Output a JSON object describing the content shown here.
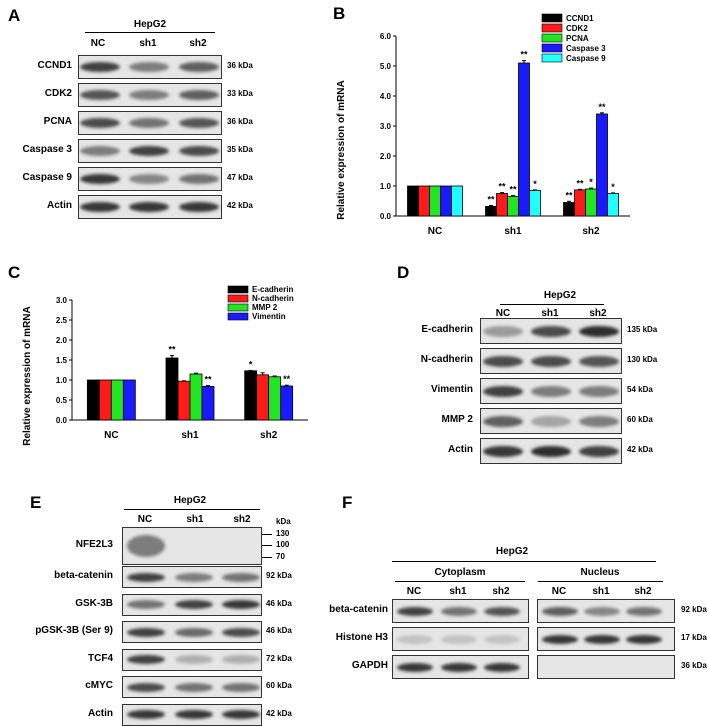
{
  "panels": {
    "A": {
      "letter": "A",
      "cell_line": "HepG2",
      "columns": [
        "NC",
        "sh1",
        "sh2"
      ],
      "rows": [
        {
          "label": "CCND1",
          "kda": "36 kDa",
          "intensity": [
            0.85,
            0.55,
            0.7
          ]
        },
        {
          "label": "CDK2",
          "kda": "33 kDa",
          "intensity": [
            0.75,
            0.55,
            0.7
          ]
        },
        {
          "label": "PCNA",
          "kda": "36 kDa",
          "intensity": [
            0.8,
            0.6,
            0.75
          ]
        },
        {
          "label": "Caspase 3",
          "kda": "35 kDa",
          "intensity": [
            0.55,
            0.85,
            0.8
          ]
        },
        {
          "label": "Caspase 9",
          "kda": "47 kDa",
          "intensity": [
            0.9,
            0.5,
            0.6
          ]
        },
        {
          "label": "Actin",
          "kda": "42 kDa",
          "intensity": [
            0.9,
            0.9,
            0.9
          ]
        }
      ]
    },
    "B": {
      "letter": "B",
      "chart_data": {
        "type": "bar",
        "categories": [
          "NC",
          "sh1",
          "sh2"
        ],
        "series": [
          {
            "name": "CCND1",
            "color": "#000000",
            "values": [
              1.0,
              0.32,
              0.45
            ],
            "errors": [
              0,
              0.03,
              0.04
            ],
            "sig": [
              "",
              "**",
              "**"
            ]
          },
          {
            "name": "CDK2",
            "color": "#ff1a1a",
            "values": [
              1.0,
              0.75,
              0.87
            ],
            "errors": [
              0,
              0.03,
              0.02
            ],
            "sig": [
              "",
              "**",
              "**"
            ]
          },
          {
            "name": "PCNA",
            "color": "#22e622",
            "values": [
              1.0,
              0.65,
              0.9
            ],
            "errors": [
              0,
              0.03,
              0.03
            ],
            "sig": [
              "",
              "**",
              "*"
            ]
          },
          {
            "name": "Caspase 3",
            "color": "#1a1aff",
            "values": [
              1.0,
              5.1,
              3.4
            ],
            "errors": [
              0,
              0.08,
              0.04
            ],
            "sig": [
              "",
              "**",
              "**"
            ]
          },
          {
            "name": "Caspase 9",
            "color": "#22ffff",
            "values": [
              1.0,
              0.85,
              0.75
            ],
            "errors": [
              0,
              0.02,
              0.02
            ],
            "sig": [
              "",
              "*",
              "*"
            ]
          }
        ],
        "ylabel": "Relative expression of  mRNA",
        "ylim": [
          0,
          6.0
        ],
        "yticks": [
          "0.0",
          "1.0",
          "2.0",
          "3.0",
          "4.0",
          "5.0",
          "6.0"
        ],
        "legend_position": "top-right"
      }
    },
    "C": {
      "letter": "C",
      "chart_data": {
        "type": "bar",
        "categories": [
          "NC",
          "sh1",
          "sh2"
        ],
        "series": [
          {
            "name": "E-cadherin",
            "color": "#000000",
            "values": [
              1.0,
              1.55,
              1.23
            ],
            "errors": [
              0,
              0.06,
              0.01
            ],
            "sig": [
              "",
              "**",
              "*"
            ]
          },
          {
            "name": "N-cadherin",
            "color": "#ff1a1a",
            "values": [
              1.0,
              0.97,
              1.13
            ],
            "errors": [
              0,
              0.01,
              0.05
            ],
            "sig": [
              "",
              "",
              ""
            ]
          },
          {
            "name": "MMP 2",
            "color": "#22e622",
            "values": [
              1.0,
              1.15,
              1.08
            ],
            "errors": [
              0,
              0.02,
              0.02
            ],
            "sig": [
              "",
              "",
              ""
            ]
          },
          {
            "name": "Vimentin",
            "color": "#1a1aff",
            "values": [
              1.0,
              0.84,
              0.85
            ],
            "errors": [
              0,
              0.02,
              0.02
            ],
            "sig": [
              "",
              "**",
              "**"
            ]
          }
        ],
        "ylabel": "Relative expression of  mRNA",
        "ylim": [
          0,
          3.0
        ],
        "yticks": [
          "0.0",
          "0.5",
          "1.0",
          "1.5",
          "2.0",
          "2.5",
          "3.0"
        ],
        "legend_position": "top-right"
      }
    },
    "D": {
      "letter": "D",
      "cell_line": "HepG2",
      "columns": [
        "NC",
        "sh1",
        "sh2"
      ],
      "rows": [
        {
          "label": "E-cadherin",
          "kda": "135 kDa",
          "intensity": [
            0.4,
            0.8,
            0.95
          ]
        },
        {
          "label": "N-cadherin",
          "kda": "130 kDa",
          "intensity": [
            0.8,
            0.8,
            0.75
          ]
        },
        {
          "label": "Vimentin",
          "kda": "54 kDa",
          "intensity": [
            0.85,
            0.55,
            0.55
          ]
        },
        {
          "label": "MMP 2",
          "kda": "60 kDa",
          "intensity": [
            0.7,
            0.35,
            0.55
          ]
        },
        {
          "label": "Actin",
          "kda": "42 kDa",
          "intensity": [
            0.9,
            0.95,
            0.85
          ]
        }
      ]
    },
    "E": {
      "letter": "E",
      "cell_line": "HepG2",
      "columns": [
        "NC",
        "sh1",
        "sh2"
      ],
      "kda_header": "kDa",
      "ladder": [
        "130",
        "100",
        "70"
      ],
      "rows": [
        {
          "label": "NFE2L3",
          "kda": "",
          "intensity": [
            0.55,
            0.0,
            0.0
          ]
        },
        {
          "label": "beta-catenin",
          "kda": "92 kDa",
          "intensity": [
            0.85,
            0.55,
            0.6
          ]
        },
        {
          "label": "GSK-3B",
          "kda": "46 kDa",
          "intensity": [
            0.6,
            0.85,
            0.9
          ]
        },
        {
          "label": "pGSK-3B (Ser 9)",
          "kda": "46 kDa",
          "intensity": [
            0.85,
            0.65,
            0.8
          ]
        },
        {
          "label": "TCF4",
          "kda": "72 kDa",
          "intensity": [
            0.85,
            0.3,
            0.3
          ]
        },
        {
          "label": "cMYC",
          "kda": "60 kDa",
          "intensity": [
            0.8,
            0.6,
            0.6
          ]
        },
        {
          "label": "Actin",
          "kda": "42 kDa",
          "intensity": [
            0.9,
            0.9,
            0.9
          ]
        }
      ]
    },
    "F": {
      "letter": "F",
      "cell_line": "HepG2",
      "groups": [
        "Cytoplasm",
        "Nucleus"
      ],
      "columns": [
        "NC",
        "sh1",
        "sh2"
      ],
      "rows": [
        {
          "label": "beta-catenin",
          "kda": "92 kDa",
          "cyto": [
            0.85,
            0.6,
            0.75
          ],
          "nuc": [
            0.7,
            0.5,
            0.6
          ]
        },
        {
          "label": "Histone H3",
          "kda": "17 kDa",
          "cyto": [
            0.2,
            0.2,
            0.2
          ],
          "nuc": [
            0.9,
            0.9,
            0.9
          ]
        },
        {
          "label": "GAPDH",
          "kda": "36 kDa",
          "cyto": [
            0.9,
            0.9,
            0.9
          ],
          "nuc": [
            0.0,
            0.0,
            0.02
          ]
        }
      ]
    }
  }
}
